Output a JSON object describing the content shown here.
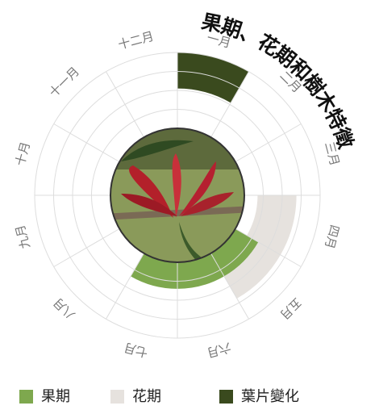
{
  "chart_data": {
    "type": "polar-range",
    "title": "果期、花期和樹木特徵",
    "categories": [
      "一月",
      "二月",
      "三月",
      "四月",
      "五月",
      "六月",
      "七月",
      "八月",
      "九月",
      "十月",
      "十一月",
      "十二月"
    ],
    "ylim": [
      0,
      4
    ],
    "rings": [
      1,
      2,
      3
    ],
    "series": [
      {
        "name": "果期",
        "color": "#7ea84e",
        "values": [
          null,
          null,
          null,
          null,
          [
            0,
            1.4
          ],
          [
            0,
            1.4
          ],
          [
            0,
            1.4
          ],
          null,
          null,
          null,
          null,
          null
        ]
      },
      {
        "name": "花期",
        "color": "#e6e2de",
        "values": [
          null,
          null,
          null,
          [
            0.7,
            2.75
          ],
          [
            1.4,
            2.75
          ],
          null,
          null,
          null,
          null,
          null,
          null,
          null
        ]
      },
      {
        "name": "葉片變化",
        "color": "#3a4a1e",
        "values": [
          [
            2.1,
            4
          ],
          null,
          null,
          null,
          null,
          null,
          null,
          null,
          null,
          null,
          null,
          null
        ]
      }
    ]
  }
}
